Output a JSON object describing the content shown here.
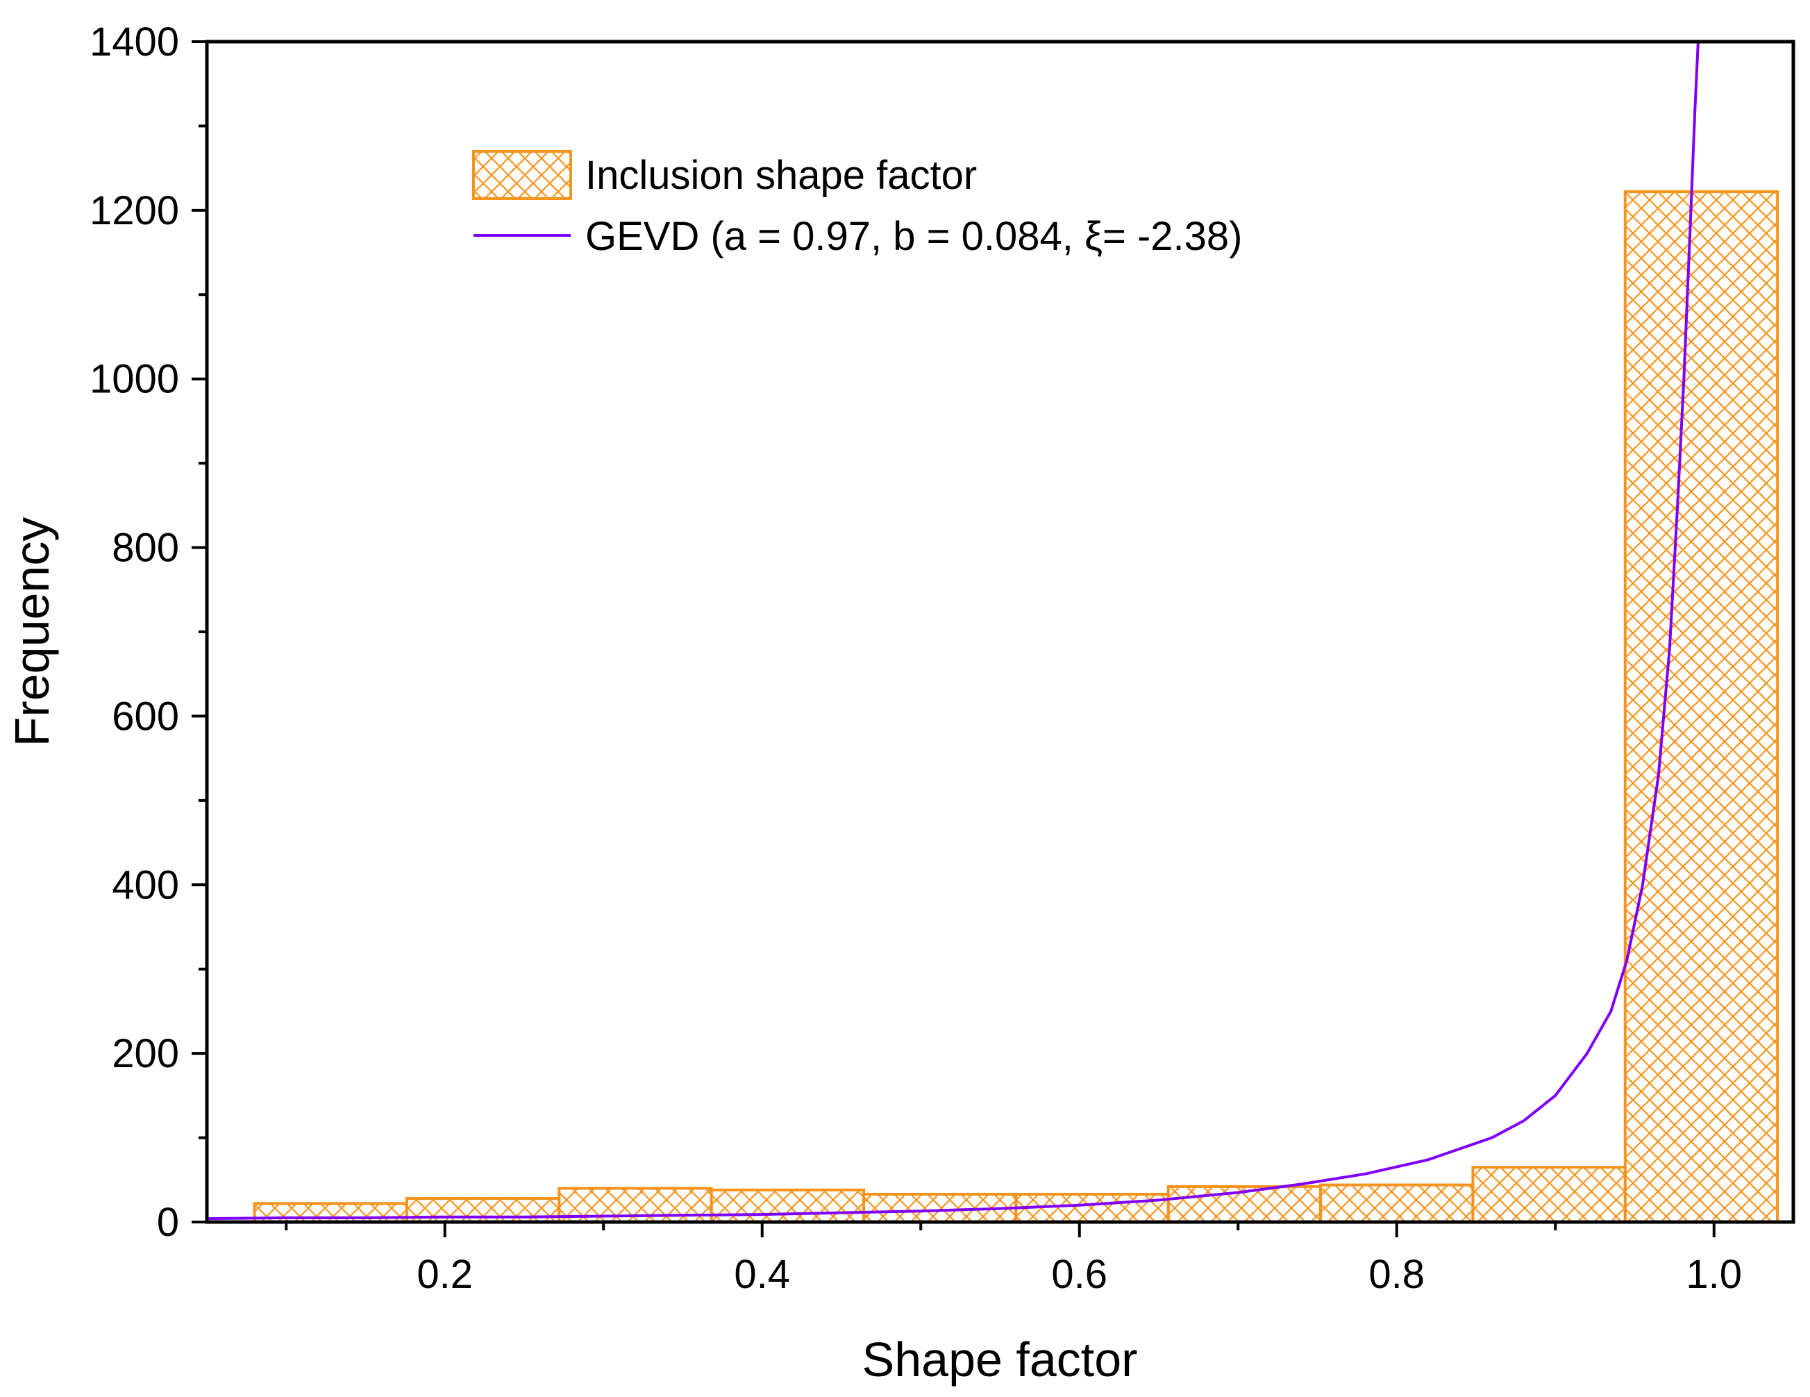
{
  "chart_data": {
    "type": "bar",
    "title": "",
    "xlabel": "Shape factor",
    "ylabel": "Frequency",
    "xlim": [
      0.05,
      1.05
    ],
    "ylim": [
      0,
      1400
    ],
    "x_ticks": [
      "0.2",
      "0.4",
      "0.6",
      "0.8",
      "1.0"
    ],
    "x_tick_values": [
      0.2,
      0.4,
      0.6,
      0.8,
      1.0
    ],
    "y_ticks": [
      "0",
      "200",
      "400",
      "600",
      "800",
      "1000",
      "1200",
      "1400"
    ],
    "y_tick_values": [
      0,
      200,
      400,
      600,
      800,
      1000,
      1200,
      1400
    ],
    "series": [
      {
        "name": "Inclusion shape factor",
        "type": "histogram",
        "color": "#F7941D",
        "pattern": "crosshatch",
        "bins": [
          {
            "start": 0.08,
            "end": 0.176,
            "value": 22
          },
          {
            "start": 0.176,
            "end": 0.272,
            "value": 28
          },
          {
            "start": 0.272,
            "end": 0.368,
            "value": 40
          },
          {
            "start": 0.368,
            "end": 0.464,
            "value": 38
          },
          {
            "start": 0.464,
            "end": 0.56,
            "value": 33
          },
          {
            "start": 0.56,
            "end": 0.656,
            "value": 33
          },
          {
            "start": 0.656,
            "end": 0.752,
            "value": 42
          },
          {
            "start": 0.752,
            "end": 0.848,
            "value": 44
          },
          {
            "start": 0.848,
            "end": 0.944,
            "value": 65
          },
          {
            "start": 0.944,
            "end": 1.04,
            "value": 1222
          }
        ]
      },
      {
        "name": "GEVD (a = 0.97, b = 0.084, ξ= -2.38)",
        "type": "line",
        "color": "#7F00FF",
        "points": [
          [
            0.05,
            4
          ],
          [
            0.1,
            5
          ],
          [
            0.15,
            5
          ],
          [
            0.2,
            6
          ],
          [
            0.25,
            6
          ],
          [
            0.3,
            7
          ],
          [
            0.35,
            8
          ],
          [
            0.4,
            9
          ],
          [
            0.45,
            11
          ],
          [
            0.5,
            13
          ],
          [
            0.55,
            16
          ],
          [
            0.6,
            20
          ],
          [
            0.65,
            26
          ],
          [
            0.7,
            35
          ],
          [
            0.74,
            45
          ],
          [
            0.78,
            57
          ],
          [
            0.82,
            74
          ],
          [
            0.86,
            100
          ],
          [
            0.88,
            120
          ],
          [
            0.9,
            150
          ],
          [
            0.92,
            200
          ],
          [
            0.935,
            250
          ],
          [
            0.945,
            310
          ],
          [
            0.955,
            400
          ],
          [
            0.965,
            530
          ],
          [
            0.972,
            680
          ],
          [
            0.977,
            850
          ],
          [
            0.981,
            1000
          ],
          [
            0.985,
            1180
          ],
          [
            0.988,
            1320
          ],
          [
            0.99,
            1400
          ]
        ]
      }
    ],
    "legend": {
      "position": "top-left",
      "entries": [
        {
          "label": "Inclusion shape factor",
          "marker": "hatched-box"
        },
        {
          "label": "GEVD (a = 0.97, b = 0.084, ξ= -2.38)",
          "marker": "line"
        }
      ]
    }
  }
}
